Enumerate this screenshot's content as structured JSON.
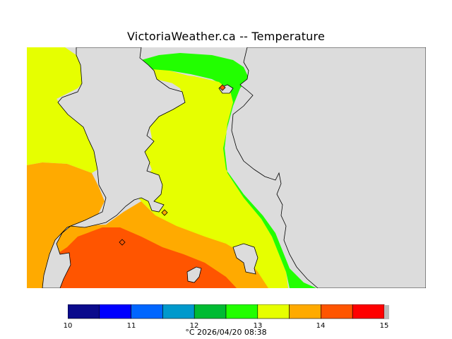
{
  "title": "VictoriaWeather.ca -- Temperature",
  "map": {
    "land_color": "#dcdcdc",
    "coast_color": "#000000",
    "stations": [
      {
        "name": "",
        "shape": "diamond"
      },
      {
        "name": "",
        "shape": "diamond"
      },
      {
        "name": "",
        "shape": "diamond"
      }
    ]
  },
  "legend": {
    "unit": "°C",
    "ticks": [
      "10",
      "11",
      "12",
      "13",
      "14",
      "15"
    ],
    "bins": [
      {
        "from": 10.0,
        "to": 10.5,
        "color": "#0a0a8c"
      },
      {
        "from": 10.5,
        "to": 11.0,
        "color": "#0000ff"
      },
      {
        "from": 11.0,
        "to": 11.5,
        "color": "#0066ff"
      },
      {
        "from": 11.5,
        "to": 12.0,
        "color": "#0099cc"
      },
      {
        "from": 12.0,
        "to": 12.5,
        "color": "#00bb33"
      },
      {
        "from": 12.5,
        "to": 13.0,
        "color": "#22ff00"
      },
      {
        "from": 13.0,
        "to": 13.5,
        "color": "#e6ff00"
      },
      {
        "from": 13.5,
        "to": 14.0,
        "color": "#ffaa00"
      },
      {
        "from": 14.0,
        "to": 14.5,
        "color": "#ff5500"
      },
      {
        "from": 14.5,
        "to": 15.0,
        "color": "#ff0000"
      }
    ]
  },
  "caption": "°C  2026/04/20 08:38"
}
